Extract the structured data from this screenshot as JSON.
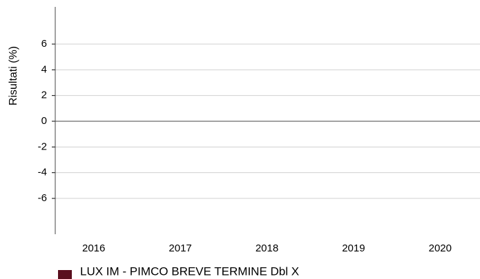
{
  "chart_data": {
    "type": "bar",
    "ylabel": "Risultati (%)",
    "categories": [
      "2016",
      "2017",
      "2018",
      "2019",
      "2020"
    ],
    "series": [
      {
        "name": "LUX IM - PIMCO BREVE TERMINE Dbl X",
        "color": "#5a0f1e",
        "values": [
          null,
          null,
          null,
          null,
          null
        ]
      }
    ],
    "ylim": [
      -9,
      9
    ],
    "yticks": [
      -6,
      -4,
      -2,
      0,
      2,
      4,
      6
    ],
    "grid": true
  }
}
